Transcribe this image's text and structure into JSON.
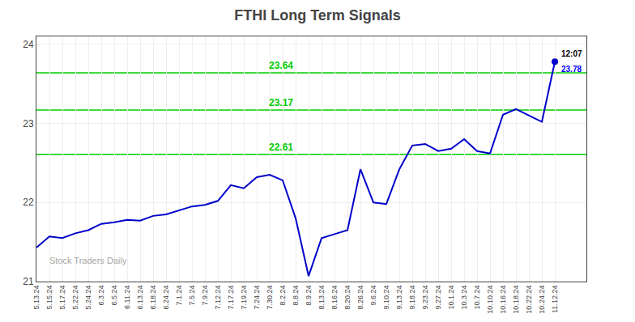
{
  "chart_data": {
    "type": "line",
    "title": "FTHI Long Term Signals",
    "categories": [
      "5.13.24",
      "5.15.24",
      "5.17.24",
      "5.22.24",
      "5.24.24",
      "6.3.24",
      "6.5.24",
      "6.11.24",
      "6.13.24",
      "6.18.24",
      "6.24.24",
      "7.1.24",
      "7.5.24",
      "7.9.24",
      "7.12.24",
      "7.17.24",
      "7.19.24",
      "7.24.24",
      "7.30.24",
      "8.2.24",
      "8.8.24",
      "8.9.24",
      "8.13.24",
      "8.16.24",
      "8.20.24",
      "8.26.24",
      "9.6.24",
      "9.10.24",
      "9.13.24",
      "9.18.24",
      "9.23.24",
      "9.27.24",
      "10.1.24",
      "10.3.24",
      "10.7.24",
      "10.10.24",
      "10.16.24",
      "10.18.24",
      "10.22.24",
      "10.24.24",
      "11.12.24"
    ],
    "values": [
      21.43,
      21.57,
      21.55,
      21.61,
      21.65,
      21.73,
      21.75,
      21.78,
      21.77,
      21.83,
      21.85,
      21.9,
      21.95,
      21.97,
      22.02,
      22.22,
      22.18,
      22.32,
      22.35,
      22.28,
      21.8,
      21.07,
      21.55,
      21.6,
      21.65,
      22.42,
      22.0,
      21.98,
      22.42,
      22.72,
      22.74,
      22.65,
      22.68,
      22.8,
      22.65,
      22.62,
      23.11,
      23.18,
      23.1,
      23.02,
      23.78
    ],
    "color": "#0000cc",
    "hlines": [
      {
        "y": 23.64,
        "label": "23.64",
        "color": "#00cc00"
      },
      {
        "y": 23.17,
        "label": "23.17",
        "color": "#00cc00"
      },
      {
        "y": 22.61,
        "label": "22.61",
        "color": "#00cc00"
      }
    ],
    "last_point_labels": [
      {
        "text": "12:07",
        "color": "#000000"
      },
      {
        "text": "23.78",
        "color": "#0000ff"
      }
    ],
    "watermark": "Stock Traders Daily",
    "ylim": [
      21.0,
      24.1
    ],
    "yticks": [
      21,
      22,
      23,
      24
    ],
    "grid": true
  }
}
